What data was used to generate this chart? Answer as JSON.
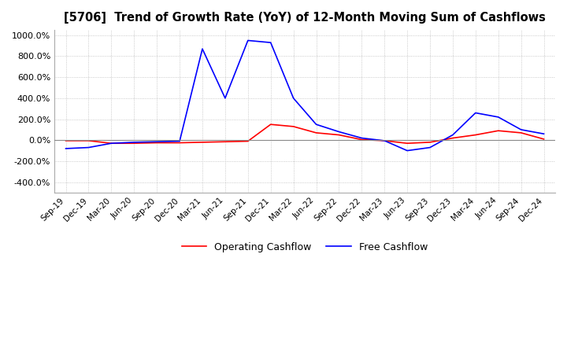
{
  "title": "[5706]  Trend of Growth Rate (YoY) of 12-Month Moving Sum of Cashflows",
  "ylim": [
    -500,
    1050
  ],
  "yticks": [
    -400,
    -200,
    0,
    200,
    400,
    600,
    800,
    1000
  ],
  "legend_labels": [
    "Operating Cashflow",
    "Free Cashflow"
  ],
  "line_colors": [
    "#ff0000",
    "#0000ff"
  ],
  "background_color": "#ffffff",
  "grid_color": "#bbbbbb",
  "x_labels": [
    "Sep-19",
    "Dec-19",
    "Mar-20",
    "Jun-20",
    "Sep-20",
    "Dec-20",
    "Mar-21",
    "Jun-21",
    "Sep-21",
    "Dec-21",
    "Mar-22",
    "Jun-22",
    "Sep-22",
    "Dec-22",
    "Mar-23",
    "Jun-23",
    "Sep-23",
    "Dec-23",
    "Mar-24",
    "Jun-24",
    "Sep-24",
    "Dec-24"
  ],
  "operating_cashflow": [
    -5,
    -5,
    -30,
    -30,
    -25,
    -25,
    -20,
    -15,
    -10,
    150,
    130,
    70,
    50,
    5,
    -5,
    -30,
    -20,
    20,
    50,
    90,
    70,
    10
  ],
  "free_cashflow": [
    -80,
    -70,
    -30,
    -20,
    -15,
    -10,
    870,
    400,
    950,
    930,
    400,
    150,
    80,
    20,
    -5,
    -100,
    -70,
    50,
    260,
    220,
    100,
    60
  ]
}
